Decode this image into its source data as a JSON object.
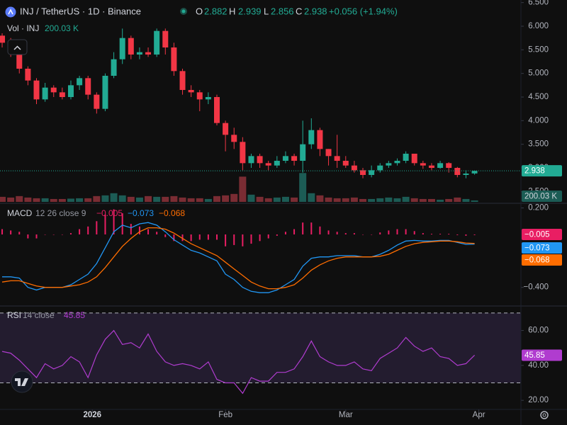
{
  "chart_data": [
    {
      "type": "candlestick",
      "title": "INJ / TetherUS · 1D · Binance",
      "ohlc_labels": [
        "O",
        "H",
        "L",
        "C"
      ],
      "change_label": "+0.056 (+1.94%)",
      "open": [
        5.8,
        5.65,
        5.45,
        5.1,
        4.85,
        4.45,
        4.7,
        4.6,
        4.5,
        4.75,
        4.9,
        4.55,
        4.25,
        4.95,
        5.3,
        5.75,
        5.4,
        5.45,
        5.4,
        5.9,
        5.55,
        5.05,
        4.65,
        4.6,
        4.45,
        4.5,
        3.95,
        3.7,
        3.55,
        3.1,
        3.25,
        3.1,
        3.05,
        3.15,
        3.25,
        3.15,
        3.5,
        3.8,
        3.4,
        3.25,
        3.15,
        3.05,
        2.95,
        2.85,
        2.95,
        3.05,
        3.1,
        3.15,
        3.3,
        3.1,
        3.05,
        3.0,
        3.1,
        3.0,
        2.85,
        2.882
      ],
      "high": [
        5.85,
        5.75,
        5.5,
        5.15,
        4.9,
        4.8,
        4.75,
        4.7,
        4.85,
        4.95,
        4.95,
        4.6,
        5.0,
        5.45,
        5.95,
        5.8,
        5.55,
        5.55,
        5.95,
        5.95,
        5.65,
        5.1,
        4.75,
        4.65,
        4.6,
        4.55,
        4.0,
        3.85,
        3.65,
        3.3,
        3.3,
        3.15,
        3.25,
        3.35,
        3.3,
        4.0,
        4.05,
        3.85,
        3.4,
        3.7,
        3.25,
        3.15,
        3.0,
        3.05,
        3.1,
        3.15,
        3.2,
        3.35,
        3.3,
        3.15,
        3.1,
        3.15,
        3.12,
        3.02,
        2.95,
        2.939
      ],
      "low": [
        5.55,
        5.35,
        5.0,
        4.75,
        4.35,
        4.4,
        4.5,
        4.45,
        4.45,
        4.65,
        4.45,
        4.15,
        4.2,
        4.9,
        5.2,
        5.3,
        5.3,
        5.35,
        5.35,
        5.4,
        4.95,
        4.55,
        4.5,
        4.2,
        4.35,
        3.9,
        3.35,
        3.4,
        2.95,
        3.0,
        3.0,
        2.95,
        3.0,
        3.1,
        3.05,
        2.9,
        3.4,
        3.25,
        3.05,
        3.0,
        3.0,
        2.9,
        2.78,
        2.8,
        2.9,
        3.0,
        3.05,
        3.1,
        3.05,
        2.98,
        2.95,
        2.98,
        2.9,
        2.8,
        2.78,
        2.856
      ],
      "close": [
        5.65,
        5.45,
        5.1,
        4.85,
        4.45,
        4.7,
        4.6,
        4.5,
        4.75,
        4.9,
        4.55,
        4.25,
        4.95,
        5.3,
        5.75,
        5.4,
        5.45,
        5.4,
        5.9,
        5.55,
        5.05,
        4.65,
        4.6,
        4.45,
        4.5,
        3.95,
        3.7,
        3.55,
        3.1,
        3.25,
        3.1,
        3.05,
        3.15,
        3.25,
        3.15,
        3.5,
        3.8,
        3.4,
        3.25,
        3.15,
        3.05,
        2.95,
        2.85,
        2.95,
        3.05,
        3.1,
        3.15,
        3.3,
        3.1,
        3.05,
        3.0,
        3.1,
        3.0,
        2.85,
        2.88,
        2.938
      ],
      "up_color": "#22ab94",
      "down_color": "#f23645",
      "ylim": [
        2.28,
        6.555
      ],
      "yticks": [
        {
          "value": 6.5,
          "label": "6.500"
        },
        {
          "value": 6.0,
          "label": "6.000"
        },
        {
          "value": 5.5,
          "label": "5.500"
        },
        {
          "value": 5.0,
          "label": "5.000"
        },
        {
          "value": 4.5,
          "label": "4.500"
        },
        {
          "value": 4.0,
          "label": "4.000"
        },
        {
          "value": 3.5,
          "label": "3.500"
        },
        {
          "value": 3.0,
          "label": "3.000"
        },
        {
          "value": 2.5,
          "label": "2.500"
        }
      ],
      "xlim": [
        -0.25,
        60.4
      ],
      "xticks": [
        {
          "value": 10.5,
          "label": "2026"
        },
        {
          "value": 26,
          "label": "Feb"
        },
        {
          "value": 40,
          "label": "Mar"
        },
        {
          "value": 55.5,
          "label": "Apr"
        }
      ],
      "volume": {
        "name": "Vol · INJ",
        "last_label": "200.03 K",
        "ylim": [
          0,
          28000
        ],
        "up_color": "#1c5c55",
        "down_color": "#7a2c33",
        "values": [
          700,
          600,
          800,
          600,
          500,
          500,
          400,
          400,
          450,
          500,
          500,
          800,
          900,
          1200,
          900,
          700,
          600,
          800,
          700,
          700,
          800,
          600,
          500,
          500,
          400,
          800,
          900,
          1100,
          3500,
          1000,
          700,
          500,
          600,
          700,
          600,
          4000,
          1200,
          900,
          600,
          500,
          500,
          600,
          400,
          400,
          500,
          600,
          500,
          700,
          500,
          400,
          400,
          300,
          400,
          600,
          400,
          200.03
        ]
      }
    },
    {
      "type": "macd",
      "title": "MACD",
      "params": "12 26 close 9",
      "ylim": [
        -0.53,
        0.23
      ],
      "yticks": [
        {
          "value": 0.2,
          "label": "0.200"
        },
        {
          "value": -0.4,
          "label": "−0.400"
        }
      ],
      "series": [
        {
          "kind": "histogram",
          "color": "#e91e63",
          "last_label": "−0.005",
          "values": [
            0.04,
            0.03,
            0.02,
            -0.03,
            -0.03,
            0,
            0,
            0,
            0.01,
            0.04,
            0.06,
            0.1,
            0.15,
            0.19,
            0.16,
            0.08,
            0.06,
            0.04,
            0.02,
            -0.02,
            -0.05,
            -0.05,
            -0.05,
            -0.04,
            -0.04,
            -0.04,
            -0.09,
            -0.08,
            -0.09,
            -0.07,
            -0.05,
            -0.03,
            -0.01,
            0.02,
            0.04,
            0.09,
            0.09,
            0.06,
            0.03,
            0.02,
            0.01,
            0.01,
            0,
            0,
            0.015,
            0.03,
            0.04,
            0.04,
            0.025,
            0.01,
            0.005,
            0.005,
            0.005,
            -0.005,
            -0.01,
            -0.005
          ]
        },
        {
          "kind": "line",
          "color": "#2196f3",
          "last_label": "−0.073",
          "values": [
            -0.32,
            -0.32,
            -0.33,
            -0.4,
            -0.42,
            -0.4,
            -0.4,
            -0.4,
            -0.38,
            -0.34,
            -0.3,
            -0.22,
            -0.1,
            0.02,
            0.07,
            0.05,
            0.08,
            0.09,
            0.07,
            0.02,
            -0.04,
            -0.08,
            -0.12,
            -0.14,
            -0.17,
            -0.2,
            -0.3,
            -0.34,
            -0.4,
            -0.43,
            -0.44,
            -0.44,
            -0.42,
            -0.38,
            -0.34,
            -0.24,
            -0.18,
            -0.17,
            -0.17,
            -0.16,
            -0.16,
            -0.16,
            -0.17,
            -0.17,
            -0.15,
            -0.12,
            -0.08,
            -0.05,
            -0.045,
            -0.05,
            -0.05,
            -0.045,
            -0.045,
            -0.06,
            -0.075,
            -0.073
          ]
        },
        {
          "kind": "line",
          "color": "#ff6d00",
          "last_label": "−0.068",
          "values": [
            -0.36,
            -0.35,
            -0.35,
            -0.37,
            -0.39,
            -0.4,
            -0.4,
            -0.4,
            -0.39,
            -0.38,
            -0.36,
            -0.32,
            -0.25,
            -0.17,
            -0.09,
            -0.03,
            0.02,
            0.05,
            0.05,
            0.04,
            0.01,
            -0.03,
            -0.07,
            -0.1,
            -0.13,
            -0.16,
            -0.21,
            -0.26,
            -0.31,
            -0.36,
            -0.39,
            -0.41,
            -0.41,
            -0.4,
            -0.38,
            -0.33,
            -0.27,
            -0.23,
            -0.2,
            -0.18,
            -0.17,
            -0.17,
            -0.17,
            -0.17,
            -0.165,
            -0.15,
            -0.12,
            -0.09,
            -0.07,
            -0.06,
            -0.055,
            -0.05,
            -0.05,
            -0.055,
            -0.065,
            -0.068
          ]
        }
      ]
    },
    {
      "type": "rsi",
      "title": "RSI",
      "params": "14 close",
      "color": "#b03ccf",
      "band": [
        30,
        70
      ],
      "ylim": [
        14.8,
        72.8
      ],
      "yticks": [
        {
          "value": 60,
          "label": "60.00"
        },
        {
          "value": 40,
          "label": "40.00"
        },
        {
          "value": 20,
          "label": "20.00"
        }
      ],
      "values": [
        48,
        47,
        43,
        38,
        33,
        41,
        38,
        40,
        45,
        42,
        33,
        46,
        55,
        60,
        52,
        53,
        50,
        58,
        48,
        42,
        40,
        41,
        40,
        38,
        42,
        32,
        30,
        30,
        24,
        33,
        31,
        31,
        36,
        36,
        38,
        45,
        54,
        45,
        42,
        40,
        40,
        42,
        38,
        37,
        44,
        47,
        50,
        56,
        51,
        48,
        50,
        45,
        44,
        40,
        41,
        45.85
      ]
    }
  ]
}
